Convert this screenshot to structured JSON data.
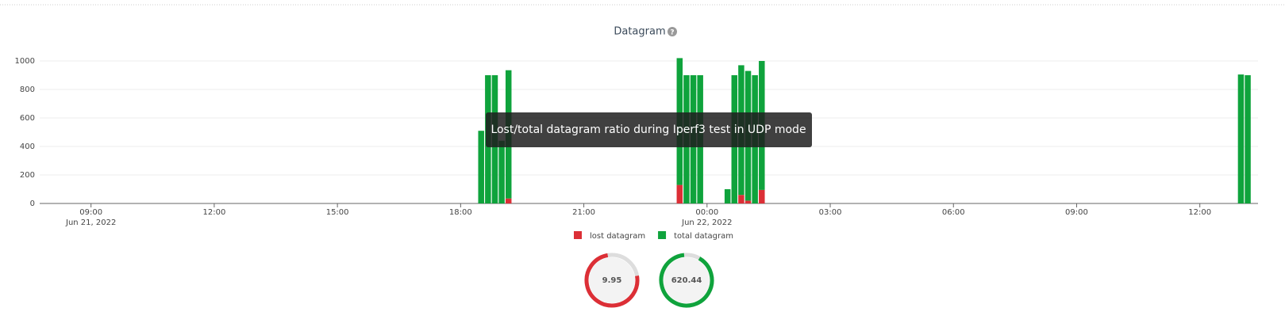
{
  "chart_data": {
    "type": "bar",
    "stacked": true,
    "title": "Datagram",
    "tooltip": "Lost/total datagram ratio during Iperf3 test in UDP mode",
    "x": [
      "2022-06-21T18:30",
      "2022-06-21T18:40",
      "2022-06-21T18:50",
      "2022-06-21T19:00",
      "2022-06-21T19:10",
      "2022-06-21T23:20",
      "2022-06-21T23:30",
      "2022-06-21T23:40",
      "2022-06-21T23:50",
      "2022-06-22T00:30",
      "2022-06-22T00:40",
      "2022-06-22T00:50",
      "2022-06-22T01:00",
      "2022-06-22T01:10",
      "2022-06-22T01:20",
      "2022-06-22T13:00",
      "2022-06-22T13:10"
    ],
    "series": [
      {
        "name": "lost datagram",
        "color": "#dc2f36",
        "values": [
          0,
          0,
          0,
          0,
          35,
          130,
          0,
          0,
          0,
          0,
          0,
          60,
          20,
          0,
          95,
          0,
          0
        ]
      },
      {
        "name": "total datagram",
        "color": "#0fa33c",
        "values": [
          510,
          900,
          900,
          440,
          900,
          890,
          900,
          900,
          900,
          100,
          900,
          910,
          910,
          900,
          905,
          905,
          900
        ]
      }
    ],
    "xlim": [
      "2022-06-21T07:45",
      "2022-06-22T13:25"
    ],
    "xticks": [
      {
        "value": "2022-06-21T09:00",
        "label": "09:00\nJun 21, 2022"
      },
      {
        "value": "2022-06-21T12:00",
        "label": "12:00"
      },
      {
        "value": "2022-06-21T15:00",
        "label": "15:00"
      },
      {
        "value": "2022-06-21T18:00",
        "label": "18:00"
      },
      {
        "value": "2022-06-21T21:00",
        "label": "21:00"
      },
      {
        "value": "2022-06-22T00:00",
        "label": "00:00\nJun 22, 2022"
      },
      {
        "value": "2022-06-22T03:00",
        "label": "03:00"
      },
      {
        "value": "2022-06-22T06:00",
        "label": "06:00"
      },
      {
        "value": "2022-06-22T09:00",
        "label": "09:00"
      },
      {
        "value": "2022-06-22T12:00",
        "label": "12:00"
      }
    ],
    "ylim": [
      0,
      1000
    ],
    "yticks": [
      0,
      200,
      400,
      600,
      800,
      1000
    ],
    "grid": true,
    "legend": "bottom",
    "gauges": [
      {
        "value_label": "9.95",
        "color": "#dc2f36"
      },
      {
        "value_label": "620.44",
        "color": "#0fa33c"
      }
    ]
  }
}
